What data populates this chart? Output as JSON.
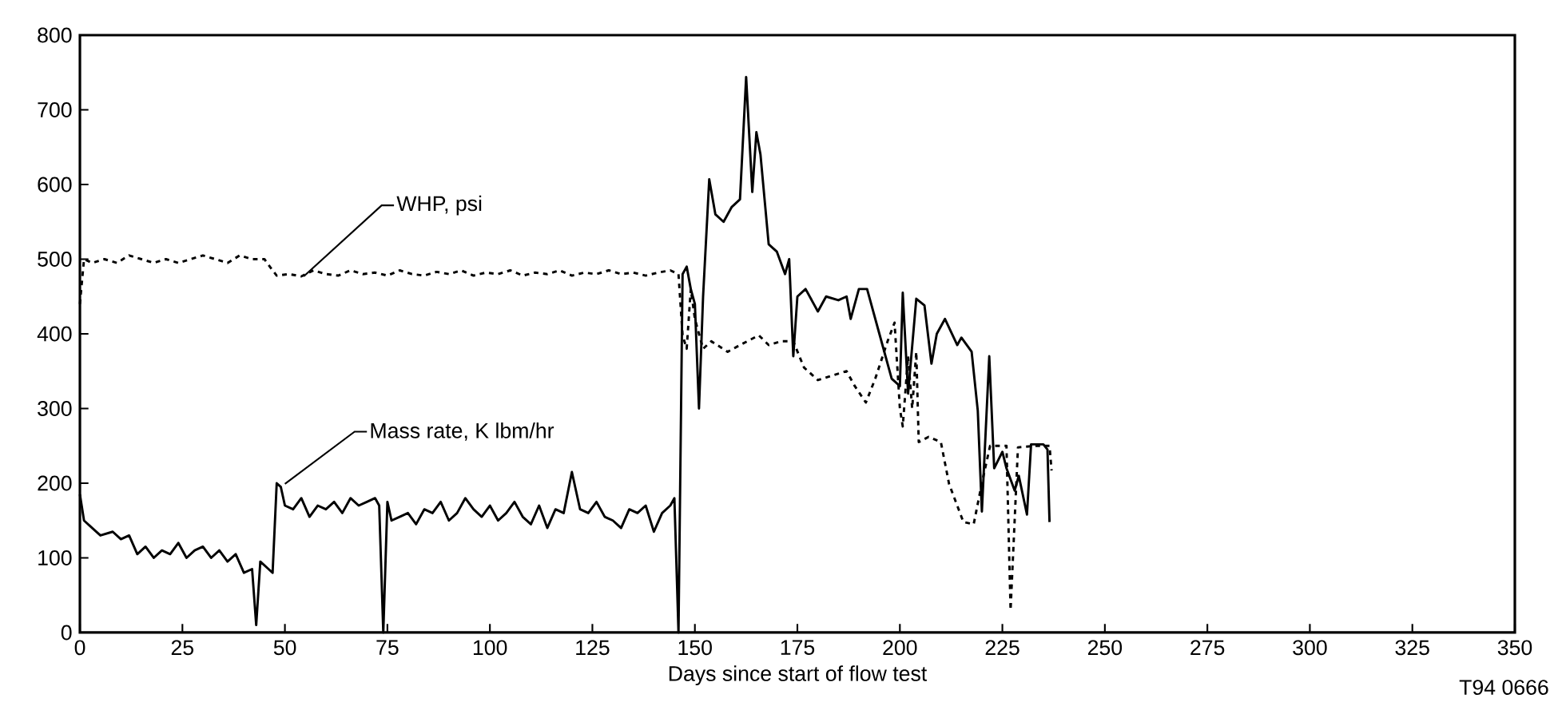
{
  "chart_data": {
    "type": "line",
    "xlabel": "Days since start of flow test",
    "xlim": [
      0,
      350
    ],
    "xticks": [
      0,
      25,
      50,
      75,
      100,
      125,
      150,
      175,
      200,
      225,
      250,
      275,
      300,
      325,
      350
    ],
    "ylim": [
      0,
      800
    ],
    "yticks": [
      0,
      100,
      200,
      300,
      400,
      500,
      600,
      700,
      800
    ],
    "marker": "none",
    "series": [
      {
        "color": "#000000",
        "line_style": "dashed",
        "x": [
          0,
          1,
          3,
          6,
          9,
          12,
          15,
          18,
          21,
          24,
          27,
          30,
          33,
          36,
          39,
          42,
          45,
          47,
          48,
          51,
          54,
          57,
          60,
          63,
          66,
          69,
          72,
          75,
          78,
          81,
          84,
          87,
          90,
          93,
          96,
          99,
          102,
          105,
          108,
          111,
          114,
          117,
          120,
          123,
          126,
          129,
          132,
          135,
          138,
          141,
          144,
          146,
          147,
          148,
          149,
          150,
          152,
          154,
          158,
          161,
          165.6,
          168,
          171,
          174,
          176.6,
          180,
          184,
          187,
          189,
          191.7,
          194,
          197,
          198.7,
          200,
          200.7,
          202,
          203,
          204,
          204.6,
          207,
          210,
          212,
          215.5,
          218,
          220,
          222,
          226,
          227,
          228.8,
          233,
          236.5,
          237
        ],
        "values": [
          440,
          500,
          495,
          500,
          495,
          505,
          500,
          495,
          500,
          495,
          500,
          505,
          500,
          495,
          505,
          500,
          500,
          485,
          478,
          480,
          477,
          485,
          480,
          478,
          485,
          480,
          482,
          478,
          485,
          480,
          478,
          483,
          480,
          485,
          478,
          482,
          480,
          485,
          478,
          482,
          480,
          485,
          478,
          482,
          480,
          485,
          480,
          482,
          478,
          482,
          485,
          480,
          398,
          380,
          460,
          420,
          380,
          390,
          376,
          385,
          398,
          385,
          390,
          390,
          355,
          338,
          345,
          350,
          330,
          308,
          340,
          390,
          415,
          300,
          276,
          370,
          300,
          376,
          255,
          262,
          255,
          199,
          148,
          145,
          200,
          250,
          250,
          30,
          248,
          250,
          250,
          217
        ]
      },
      {
        "color": "#000000",
        "line_style": "solid",
        "x": [
          0,
          1,
          3,
          5,
          8,
          10,
          12,
          14,
          16,
          18,
          20,
          22,
          24,
          26,
          28,
          30,
          32,
          34,
          36,
          38,
          40,
          42,
          43,
          44,
          46,
          47,
          48,
          49,
          50,
          52,
          54,
          56,
          58,
          60,
          62,
          64,
          66,
          68,
          70,
          72,
          73,
          74,
          75,
          76,
          78,
          80,
          82,
          84,
          86,
          88,
          90,
          92,
          94,
          96,
          98,
          100,
          102,
          104,
          106,
          108,
          110,
          112,
          114,
          116,
          118,
          120,
          122,
          124,
          126,
          128,
          130,
          132,
          134,
          136,
          138,
          140,
          142,
          144,
          145,
          146,
          147,
          148,
          149,
          150,
          151,
          152,
          153.5,
          155,
          157,
          159,
          161,
          162.5,
          164,
          165,
          166,
          168,
          170,
          172,
          173,
          174,
          175,
          177,
          180,
          182,
          185,
          187,
          188,
          190,
          192,
          195,
          198,
          200,
          200.7,
          202,
          204,
          206,
          207.7,
          209,
          211,
          214,
          215,
          217.5,
          219,
          220,
          221.8,
          223,
          225,
          226,
          228,
          229,
          231,
          232,
          235,
          236,
          236.5
        ],
        "values": [
          185,
          150,
          140,
          130,
          135,
          125,
          130,
          105,
          115,
          100,
          110,
          105,
          120,
          100,
          110,
          115,
          100,
          110,
          95,
          105,
          80,
          85,
          10,
          95,
          85,
          80,
          200,
          195,
          170,
          165,
          180,
          155,
          170,
          165,
          175,
          160,
          180,
          170,
          175,
          180,
          170,
          0,
          175,
          150,
          155,
          160,
          145,
          165,
          160,
          175,
          150,
          160,
          180,
          165,
          155,
          170,
          150,
          160,
          175,
          155,
          145,
          170,
          140,
          165,
          160,
          215,
          165,
          160,
          175,
          155,
          150,
          140,
          165,
          160,
          170,
          135,
          160,
          170,
          180,
          0,
          480,
          490,
          460,
          440,
          300,
          450,
          607,
          560,
          550,
          570,
          580,
          744,
          590,
          670,
          640,
          520,
          510,
          480,
          500,
          370,
          450,
          460,
          430,
          450,
          445,
          450,
          420,
          460,
          460,
          400,
          340,
          330,
          455,
          320,
          447,
          438,
          360,
          400,
          420,
          385,
          395,
          376,
          297,
          162,
          370,
          220,
          242,
          220,
          190,
          210,
          158,
          252,
          252,
          245,
          148
        ]
      }
    ],
    "annotations": [
      {
        "text": "WHP, psi",
        "x": 54.6,
        "y": 477
      },
      {
        "text": "Mass rate, K lbm/hr",
        "x": 50,
        "y": 199
      },
      "T94 0666"
    ]
  }
}
